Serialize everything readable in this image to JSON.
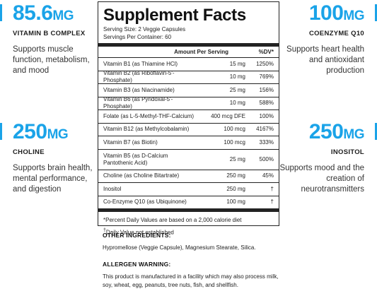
{
  "callouts": {
    "vitb": {
      "value": "85.6",
      "unit": "MG",
      "name": "VITAMIN B COMPLEX",
      "desc": "Supports muscle function, metabolism, and mood"
    },
    "coq10": {
      "value": "100",
      "unit": "MG",
      "name": "COENZYME Q10",
      "desc": "Supports heart health and antioxidant production"
    },
    "choline": {
      "value": "250",
      "unit": "MG",
      "name": "CHOLINE",
      "desc": "Supports brain health, mental performance, and digestion"
    },
    "inositol": {
      "value": "250",
      "unit": "MG",
      "name": "INOSITOL",
      "desc": "Supports mood and the creation of neurotransmitters"
    },
    "accent_color": "#1aa3e8"
  },
  "facts": {
    "title": "Supplement Facts",
    "serving_size": "Serving Size: 2 Veggie Capsules",
    "servings_per": "Servings Per Container: 60",
    "col_amount": "Amount Per Serving",
    "col_dv": "%DV*",
    "rows": [
      {
        "name": "Vitamin B1 (as Thiamine HCl)",
        "amount": "15 mg",
        "dv": "1250%"
      },
      {
        "name": "Vitamin B2 (as Riboflavin-5'-Phosphate)",
        "amount": "10 mg",
        "dv": "769%"
      },
      {
        "name": "Vitamin B3 (as Niacinamide)",
        "amount": "25 mg",
        "dv": "156%"
      },
      {
        "name": "Vitamin B6 (as Pyridoxal-5'-Phosphate)",
        "amount": "10 mg",
        "dv": "588%"
      },
      {
        "name": "Folate (as L-5-Methyl-THF-Calcium)",
        "amount": "400 mcg DFE",
        "dv": "100%"
      },
      {
        "name": "Vitamin B12 (as Methylcobalamin)",
        "amount": "100 mcg",
        "dv": "4167%"
      },
      {
        "name": "Vitamin B7 (as Biotin)",
        "amount": "100 mcg",
        "dv": "333%"
      },
      {
        "name": "Vitamin B5 (as D-Calcium",
        "name2": "Pantothenic Acid)",
        "amount": "25 mg",
        "dv": "500%"
      },
      {
        "name": "Choline (as Choline Bitartrate)",
        "amount": "250 mg",
        "dv": "45%"
      },
      {
        "name": "Inositol",
        "amount": "250 mg",
        "dv": "†"
      },
      {
        "name": "Co-Enzyme Q10 (as Ubiquinone)",
        "amount": "100 mg",
        "dv": "†"
      }
    ],
    "footnote1": "*Percent Daily Values are based on a 2,000 calorie diet",
    "footnote2_mark": "†",
    "footnote2": "Daily Value not established"
  },
  "other": {
    "heading": "OTHER INGREDIENTS:",
    "text": "Hypromellose (Veggie Capsule), Magnesium Stearate, Silica."
  },
  "allergen": {
    "heading": "ALLERGEN WARNING:",
    "text": "This product is manufactured in a facility which may also process milk, soy, wheat, egg, peanuts, tree nuts, fish, and shellfish."
  }
}
